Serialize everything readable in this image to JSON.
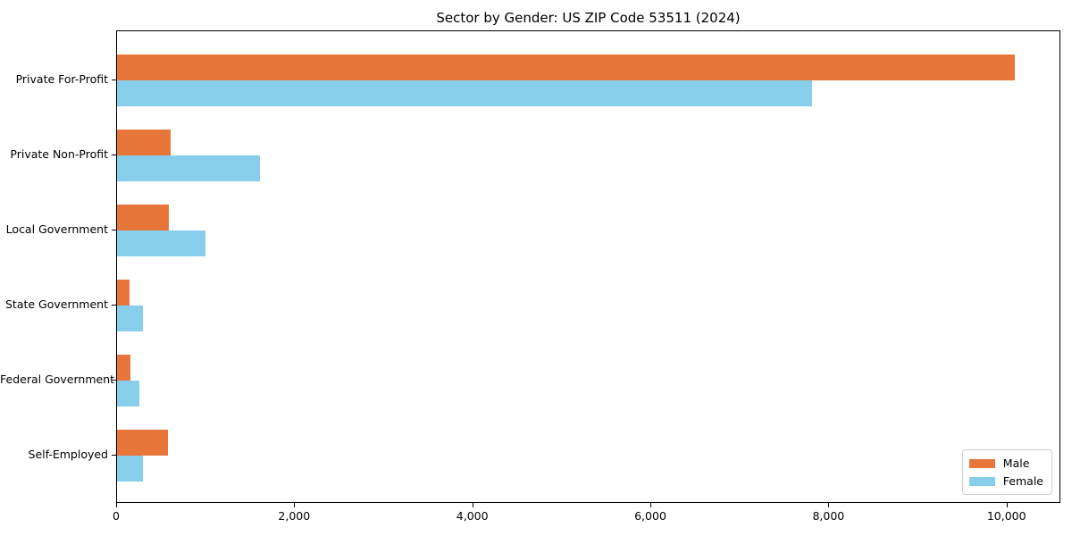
{
  "chart_data": {
    "type": "bar",
    "orientation": "horizontal",
    "title": "Sector by Gender: US ZIP Code 53511 (2024)",
    "categories": [
      "Private For-Profit",
      "Private Non-Profit",
      "Local Government",
      "State Government",
      "Federal Government",
      "Self-Employed"
    ],
    "series": [
      {
        "name": "Male",
        "color": "#e8763b",
        "values": [
          10100,
          600,
          580,
          145,
          155,
          570
        ]
      },
      {
        "name": "Female",
        "color": "#87ceeb",
        "values": [
          7820,
          1610,
          1000,
          295,
          250,
          290
        ]
      }
    ],
    "xlabel": "",
    "ylabel": "",
    "xlim": [
      0,
      10605
    ],
    "xticks": {
      "values": [
        0,
        2000,
        4000,
        6000,
        8000,
        10000
      ],
      "labels": [
        "0",
        "2,000",
        "4,000",
        "6,000",
        "8,000",
        "10,000"
      ]
    },
    "grid": false,
    "legend": {
      "position": "lower right",
      "entries": [
        "Male",
        "Female"
      ]
    },
    "colors": {
      "male": "#e8763b",
      "female": "#87ceeb",
      "spine": "#000000",
      "background": "#ffffff"
    }
  }
}
